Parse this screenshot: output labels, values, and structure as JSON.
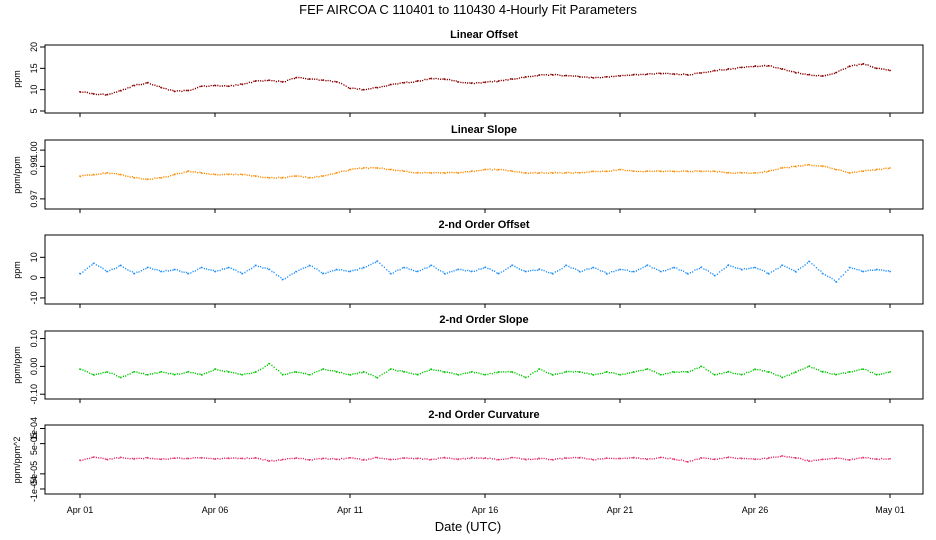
{
  "title": "FEF   AIRCOA C   110401 to 110430   4-Hourly Fit Parameters",
  "x_label": "Date (UTC)",
  "x_ticks": [
    {
      "day": 1,
      "label": "Apr 01"
    },
    {
      "day": 6,
      "label": "Apr 06"
    },
    {
      "day": 11,
      "label": "Apr 11"
    },
    {
      "day": 16,
      "label": "Apr 16"
    },
    {
      "day": 21,
      "label": "Apr 21"
    },
    {
      "day": 26,
      "label": "Apr 26"
    },
    {
      "day": 31,
      "label": "May 01"
    }
  ],
  "chart_data": [
    {
      "type": "line",
      "title": "Linear Offset",
      "ylabel": "ppm",
      "xlim": [
        1,
        31
      ],
      "ylim": [
        5,
        20
      ],
      "yticks": [
        {
          "v": 5,
          "t": "5"
        },
        {
          "v": 10,
          "t": "10"
        },
        {
          "v": 15,
          "t": "15"
        },
        {
          "v": 20,
          "t": "20"
        }
      ],
      "color": "#8b0000",
      "x": [
        1.0,
        1.5,
        2.0,
        2.5,
        3.0,
        3.5,
        4.0,
        4.5,
        5.0,
        5.5,
        6.0,
        6.5,
        7.0,
        7.5,
        8.0,
        8.5,
        9.0,
        9.5,
        10.0,
        10.5,
        11.0,
        11.5,
        12.0,
        12.5,
        13.0,
        13.5,
        14.0,
        14.5,
        15.0,
        15.5,
        16.0,
        16.5,
        17.0,
        17.5,
        18.0,
        18.5,
        19.0,
        19.5,
        20.0,
        20.5,
        21.0,
        21.5,
        22.0,
        22.5,
        23.0,
        23.5,
        24.0,
        24.5,
        25.0,
        25.5,
        26.0,
        26.5,
        27.0,
        27.5,
        28.0,
        28.5,
        29.0,
        29.5,
        30.0,
        30.5,
        31.0
      ],
      "values": [
        9.5,
        9.0,
        8.8,
        9.8,
        11.0,
        11.6,
        10.5,
        9.6,
        9.8,
        10.8,
        11.0,
        10.8,
        11.3,
        12.0,
        12.2,
        11.8,
        12.8,
        12.5,
        12.2,
        11.8,
        10.3,
        10.0,
        10.5,
        11.2,
        11.6,
        12.0,
        12.6,
        12.5,
        11.8,
        11.5,
        11.7,
        12.0,
        12.5,
        13.0,
        13.4,
        13.5,
        13.3,
        13.0,
        12.8,
        13.0,
        13.2,
        13.5,
        13.6,
        13.8,
        13.7,
        13.5,
        13.9,
        14.5,
        14.8,
        15.2,
        15.5,
        15.6,
        14.8,
        14.0,
        13.5,
        13.2,
        14.0,
        15.5,
        16.0,
        15.0,
        14.5
      ]
    },
    {
      "type": "line",
      "title": "Linear Slope",
      "ylabel": "ppm/ppm",
      "xlim": [
        1,
        31
      ],
      "ylim": [
        0.965,
        1.005
      ],
      "yticks": [
        {
          "v": 0.97,
          "t": "0.97"
        },
        {
          "v": 0.99,
          "t": "0.99"
        },
        {
          "v": 1.0,
          "t": "1.00"
        }
      ],
      "color": "#ff8c00",
      "x": [
        1.0,
        1.5,
        2.0,
        2.5,
        3.0,
        3.5,
        4.0,
        4.5,
        5.0,
        5.5,
        6.0,
        6.5,
        7.0,
        7.5,
        8.0,
        8.5,
        9.0,
        9.5,
        10.0,
        10.5,
        11.0,
        11.5,
        12.0,
        12.5,
        13.0,
        13.5,
        14.0,
        14.5,
        15.0,
        15.5,
        16.0,
        16.5,
        17.0,
        17.5,
        18.0,
        18.5,
        19.0,
        19.5,
        20.0,
        20.5,
        21.0,
        21.5,
        22.0,
        22.5,
        23.0,
        23.5,
        24.0,
        24.5,
        25.0,
        25.5,
        26.0,
        26.5,
        27.0,
        27.5,
        28.0,
        28.5,
        29.0,
        29.5,
        30.0,
        30.5,
        31.0
      ],
      "values": [
        0.984,
        0.985,
        0.986,
        0.985,
        0.983,
        0.982,
        0.983,
        0.985,
        0.987,
        0.986,
        0.985,
        0.985,
        0.985,
        0.984,
        0.983,
        0.983,
        0.984,
        0.983,
        0.984,
        0.986,
        0.988,
        0.989,
        0.989,
        0.988,
        0.987,
        0.986,
        0.986,
        0.986,
        0.986,
        0.987,
        0.988,
        0.988,
        0.987,
        0.986,
        0.986,
        0.986,
        0.986,
        0.986,
        0.987,
        0.987,
        0.988,
        0.987,
        0.987,
        0.987,
        0.987,
        0.987,
        0.987,
        0.987,
        0.986,
        0.986,
        0.986,
        0.987,
        0.989,
        0.99,
        0.991,
        0.99,
        0.988,
        0.986,
        0.987,
        0.988,
        0.989
      ]
    },
    {
      "type": "line",
      "title": "2-nd Order Offset",
      "ylabel": "ppm",
      "xlim": [
        1,
        31
      ],
      "ylim": [
        -12,
        20
      ],
      "yticks": [
        {
          "v": -10,
          "t": "-10"
        },
        {
          "v": 0,
          "t": "0"
        },
        {
          "v": 10,
          "t": "10"
        }
      ],
      "color": "#1e90ff",
      "x": [
        1.0,
        1.5,
        2.0,
        2.5,
        3.0,
        3.5,
        4.0,
        4.5,
        5.0,
        5.5,
        6.0,
        6.5,
        7.0,
        7.5,
        8.0,
        8.5,
        9.0,
        9.5,
        10.0,
        10.5,
        11.0,
        11.5,
        12.0,
        12.5,
        13.0,
        13.5,
        14.0,
        14.5,
        15.0,
        15.5,
        16.0,
        16.5,
        17.0,
        17.5,
        18.0,
        18.5,
        19.0,
        19.5,
        20.0,
        20.5,
        21.0,
        21.5,
        22.0,
        22.5,
        23.0,
        23.5,
        24.0,
        24.5,
        25.0,
        25.5,
        26.0,
        26.5,
        27.0,
        27.5,
        28.0,
        28.5,
        29.0,
        29.5,
        30.0,
        30.5,
        31.0
      ],
      "values": [
        2,
        7,
        3,
        6,
        2,
        5,
        3,
        4,
        2,
        5,
        3,
        5,
        2,
        6,
        4,
        -1,
        3,
        6,
        2,
        4,
        3,
        5,
        8,
        2,
        5,
        3,
        6,
        2,
        4,
        3,
        5,
        2,
        6,
        3,
        4,
        2,
        6,
        3,
        5,
        2,
        4,
        3,
        6,
        3,
        5,
        2,
        5,
        1,
        6,
        4,
        5,
        2,
        6,
        3,
        8,
        2,
        -2,
        5,
        3,
        4,
        3
      ]
    },
    {
      "type": "line",
      "title": "2-nd Order Slope",
      "ylabel": "ppm/ppm",
      "xlim": [
        1,
        31
      ],
      "ylim": [
        -0.11,
        0.12
      ],
      "yticks": [
        {
          "v": -0.1,
          "t": "-0.10"
        },
        {
          "v": 0.0,
          "t": "0.00"
        },
        {
          "v": 0.1,
          "t": "0.10"
        }
      ],
      "color": "#00cc00",
      "x": [
        1.0,
        1.5,
        2.0,
        2.5,
        3.0,
        3.5,
        4.0,
        4.5,
        5.0,
        5.5,
        6.0,
        6.5,
        7.0,
        7.5,
        8.0,
        8.5,
        9.0,
        9.5,
        10.0,
        10.5,
        11.0,
        11.5,
        12.0,
        12.5,
        13.0,
        13.5,
        14.0,
        14.5,
        15.0,
        15.5,
        16.0,
        16.5,
        17.0,
        17.5,
        18.0,
        18.5,
        19.0,
        19.5,
        20.0,
        20.5,
        21.0,
        21.5,
        22.0,
        22.5,
        23.0,
        23.5,
        24.0,
        24.5,
        25.0,
        25.5,
        26.0,
        26.5,
        27.0,
        27.5,
        28.0,
        28.5,
        29.0,
        29.5,
        30.0,
        30.5,
        31.0
      ],
      "values": [
        -0.01,
        -0.03,
        -0.02,
        -0.04,
        -0.02,
        -0.03,
        -0.02,
        -0.03,
        -0.02,
        -0.03,
        -0.01,
        -0.02,
        -0.03,
        -0.02,
        0.01,
        -0.03,
        -0.02,
        -0.03,
        -0.01,
        -0.02,
        -0.03,
        -0.02,
        -0.04,
        -0.01,
        -0.02,
        -0.03,
        -0.01,
        -0.02,
        -0.03,
        -0.02,
        -0.03,
        -0.02,
        -0.02,
        -0.04,
        -0.01,
        -0.03,
        -0.02,
        -0.02,
        -0.03,
        -0.02,
        -0.03,
        -0.02,
        -0.01,
        -0.03,
        -0.02,
        -0.02,
        0.0,
        -0.03,
        -0.02,
        -0.03,
        -0.01,
        -0.02,
        -0.04,
        -0.02,
        0.0,
        -0.02,
        -0.03,
        -0.02,
        -0.01,
        -0.03,
        -0.02
      ]
    },
    {
      "type": "line",
      "title": "2-nd Order Curvature",
      "ylabel": "ppm/ppm^2",
      "xlim": [
        1,
        31
      ],
      "ylim": [
        -0.00011,
        0.000105
      ],
      "yticks": [
        {
          "v": -0.0001,
          "t": "-1e-04"
        },
        {
          "v": -5e-05,
          "t": "-5e-05"
        },
        {
          "v": 5e-05,
          "t": "5e-05"
        },
        {
          "v": 0.0001,
          "t": "1e-04"
        }
      ],
      "color": "#e8306a",
      "x": [
        1.0,
        1.5,
        2.0,
        2.5,
        3.0,
        3.5,
        4.0,
        4.5,
        5.0,
        5.5,
        6.0,
        6.5,
        7.0,
        7.5,
        8.0,
        8.5,
        9.0,
        9.5,
        10.0,
        10.5,
        11.0,
        11.5,
        12.0,
        12.5,
        13.0,
        13.5,
        14.0,
        14.5,
        15.0,
        15.5,
        16.0,
        16.5,
        17.0,
        17.5,
        18.0,
        18.5,
        19.0,
        19.5,
        20.0,
        20.5,
        21.0,
        21.5,
        22.0,
        22.5,
        23.0,
        23.5,
        24.0,
        24.5,
        25.0,
        25.5,
        26.0,
        26.5,
        27.0,
        27.5,
        28.0,
        28.5,
        29.0,
        29.5,
        30.0,
        30.5,
        31.0
      ],
      "values": [
        -5e-06,
        5e-06,
        -2e-06,
        4e-06,
        -1e-06,
        3e-06,
        -2e-06,
        2e-06,
        1e-06,
        3e-06,
        -1e-06,
        2e-06,
        1e-06,
        3e-06,
        -8e-06,
        -3e-06,
        2e-06,
        -4e-06,
        1e-06,
        -2e-06,
        3e-06,
        -4e-06,
        4e-06,
        -2e-06,
        2e-06,
        1e-06,
        -3e-06,
        4e-06,
        -2e-06,
        3e-06,
        2e-06,
        -3e-06,
        4e-06,
        -2e-06,
        1e-06,
        -3e-06,
        2e-06,
        3e-06,
        -3e-06,
        2e-06,
        1e-06,
        3e-06,
        -2e-06,
        4e-06,
        -1e-06,
        -1e-05,
        3e-06,
        -2e-06,
        4e-06,
        1e-06,
        -2e-06,
        2e-06,
        9e-06,
        3e-06,
        -8e-06,
        -2e-06,
        2e-06,
        -4e-06,
        4e-06,
        -1e-06,
        0.0
      ]
    }
  ]
}
